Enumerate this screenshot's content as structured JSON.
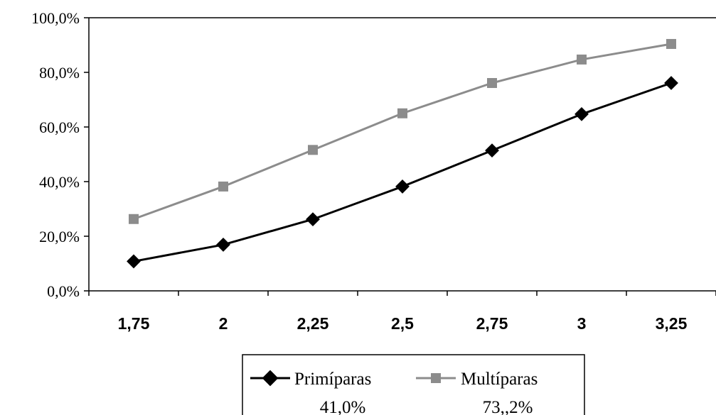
{
  "chart_data": {
    "type": "line",
    "x": [
      "1,75",
      "2",
      "2,25",
      "2,5",
      "2,75",
      "3",
      "3,25"
    ],
    "ylim": [
      0,
      100
    ],
    "yticks": [
      0,
      20,
      40,
      60,
      80,
      100
    ],
    "ytick_labels": [
      "0,0%",
      "20,0%",
      "40,0%",
      "60,0%",
      "80,0%",
      "100,0%"
    ],
    "grid": false,
    "legend_position": "bottom",
    "series": [
      {
        "name": "Primíparas",
        "summary": "41,0%",
        "color": "#000000",
        "marker": "diamond",
        "values": [
          10.8,
          16.9,
          26.2,
          38.2,
          51.4,
          64.7,
          76.1
        ]
      },
      {
        "name": "Multíparas",
        "summary": "73,,2%",
        "color": "#8c8c8c",
        "marker": "square",
        "values": [
          26.3,
          38.2,
          51.6,
          65.0,
          76.1,
          84.7,
          90.4
        ]
      }
    ]
  }
}
